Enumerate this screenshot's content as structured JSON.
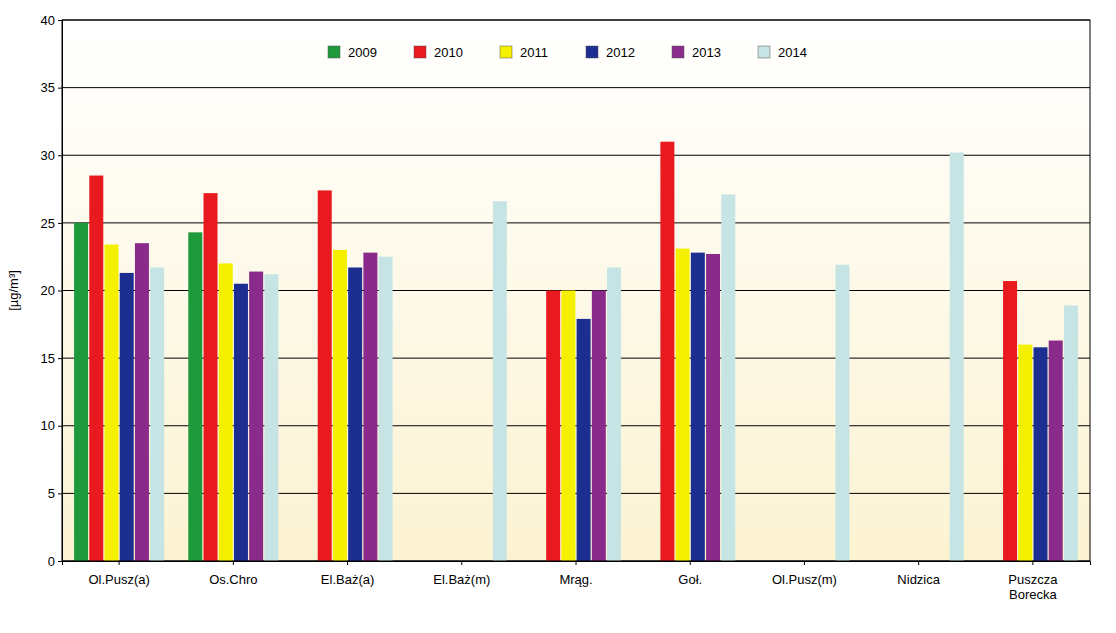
{
  "chart_data": {
    "type": "bar",
    "y_label": "[µg/m³]",
    "categories": [
      "Ol.Pusz(a)",
      "Os.Chro",
      "El.Baż(a)",
      "El.Baż(m)",
      "Mrąg.",
      "Goł.",
      "Ol.Pusz(m)",
      "Nidzica",
      "Puszcza Borecka"
    ],
    "series": [
      {
        "name": "2009",
        "color": "#1e9a3c",
        "values": [
          25,
          24.3,
          null,
          null,
          null,
          null,
          null,
          null,
          null
        ]
      },
      {
        "name": "2010",
        "color": "#e8191f",
        "values": [
          28.5,
          27.2,
          27.4,
          null,
          20,
          31,
          null,
          null,
          20.7
        ]
      },
      {
        "name": "2011",
        "color": "#f4f000",
        "values": [
          23.4,
          22,
          23,
          null,
          20,
          23.1,
          null,
          null,
          16
        ]
      },
      {
        "name": "2012",
        "color": "#1c2e8f",
        "values": [
          21.3,
          20.5,
          21.7,
          null,
          17.9,
          22.8,
          null,
          null,
          15.8
        ]
      },
      {
        "name": "2013",
        "color": "#8a2b8c",
        "values": [
          23.5,
          21.4,
          22.8,
          null,
          20,
          22.7,
          null,
          null,
          16.3
        ]
      },
      {
        "name": "2014",
        "color": "#c6e4e4",
        "values": [
          21.7,
          21.2,
          22.5,
          26.6,
          21.7,
          27.1,
          21.9,
          30.2,
          18.9
        ]
      }
    ],
    "ylim": [
      0,
      40
    ],
    "yticks": [
      0,
      5,
      10,
      15,
      20,
      25,
      30,
      35,
      40
    ],
    "grid": true,
    "legend": "top"
  }
}
